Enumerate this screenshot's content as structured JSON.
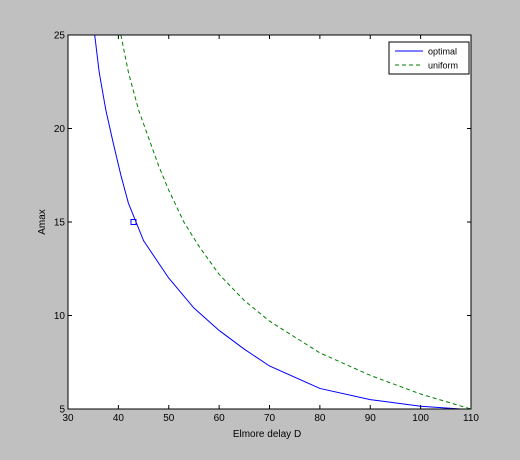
{
  "chart_data": {
    "type": "line",
    "xlabel": "Elmore delay D",
    "ylabel": "Amax",
    "xlim": [
      30,
      110
    ],
    "ylim": [
      5,
      25
    ],
    "xticks": [
      30,
      40,
      50,
      60,
      70,
      80,
      90,
      100,
      110
    ],
    "yticks": [
      5,
      10,
      15,
      20,
      25
    ],
    "grid": false,
    "legend_position": "top-right",
    "series": [
      {
        "name": "optimal",
        "style": "solid",
        "color": "#0000ff",
        "x": [
          35.3,
          36.2,
          37.5,
          39.0,
          40.5,
          42.0,
          45.0,
          50.0,
          55.0,
          60.0,
          65.0,
          70.0,
          80.0,
          90.0,
          100.0,
          108.0
        ],
        "y": [
          25.0,
          23.0,
          21.0,
          19.2,
          17.5,
          16.0,
          14.0,
          12.0,
          10.4,
          9.2,
          8.2,
          7.3,
          6.1,
          5.5,
          5.15,
          5.0
        ]
      },
      {
        "name": "uniform",
        "style": "dashed",
        "color": "#007f00",
        "x": [
          40.5,
          42.0,
          44.0,
          46.0,
          48.0,
          50.0,
          53.0,
          56.0,
          60.0,
          65.0,
          70.0,
          80.0,
          90.0,
          100.0,
          110.0
        ],
        "y": [
          25.0,
          23.0,
          21.0,
          19.5,
          18.0,
          16.7,
          15.0,
          13.7,
          12.2,
          10.8,
          9.7,
          8.0,
          6.8,
          5.8,
          5.0
        ]
      }
    ],
    "markers": [
      {
        "x": 43.0,
        "y": 15.0,
        "shape": "square",
        "color": "#0000ff"
      }
    ]
  }
}
